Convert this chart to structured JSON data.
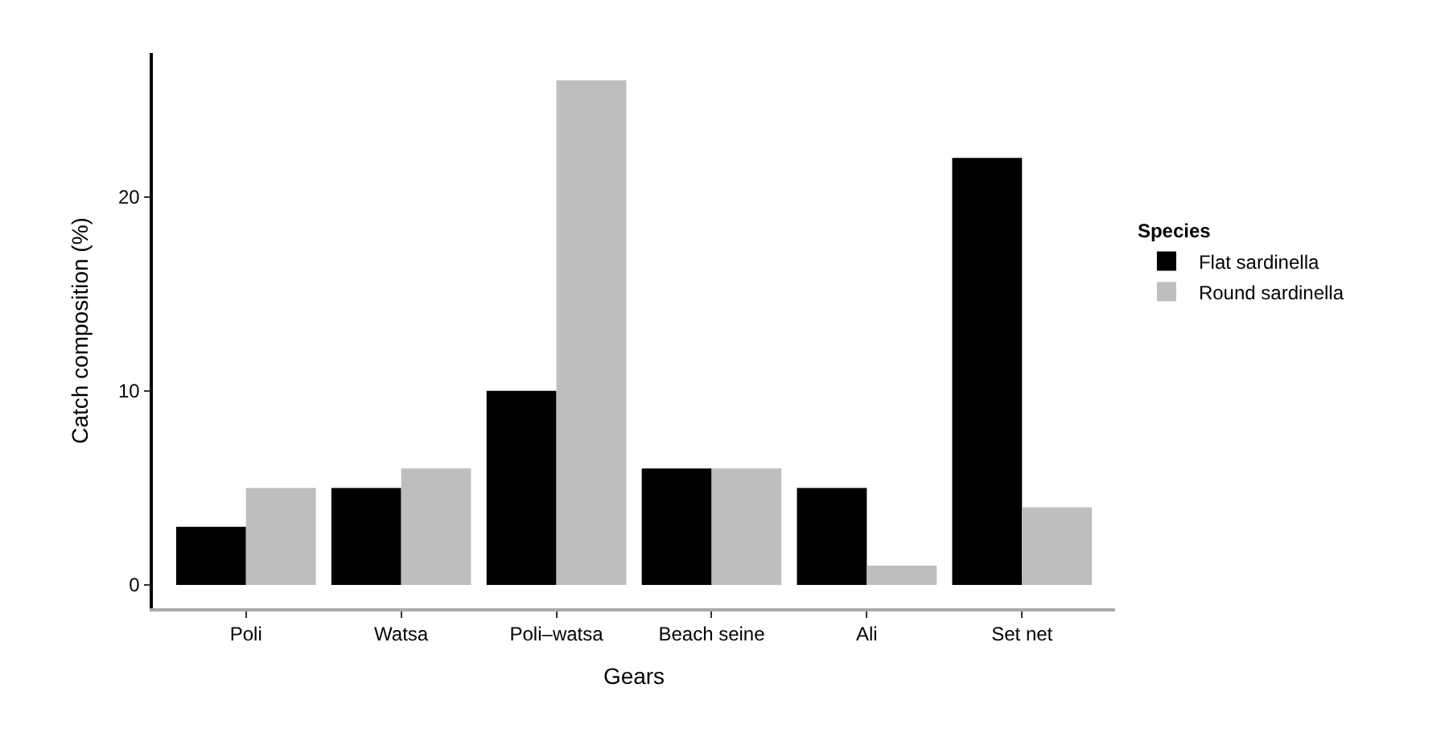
{
  "chart_data": {
    "type": "bar",
    "xlabel": "Gears",
    "ylabel": "Catch composition (%)",
    "legend_title": "Species",
    "categories": [
      "Poli",
      "Watsa",
      "Poli–watsa",
      "Beach seine",
      "Ali",
      "Set net"
    ],
    "series": [
      {
        "name": "Flat sardinella",
        "color": "#000000",
        "values": [
          3,
          5,
          10,
          6,
          5,
          22
        ]
      },
      {
        "name": "Round sardinella",
        "color": "#bebebe",
        "values": [
          5,
          6,
          26,
          6,
          1,
          4
        ]
      }
    ],
    "ylim": [
      -1.2,
      27.4
    ],
    "yticks": [
      0,
      10,
      20
    ],
    "legend": "right"
  }
}
